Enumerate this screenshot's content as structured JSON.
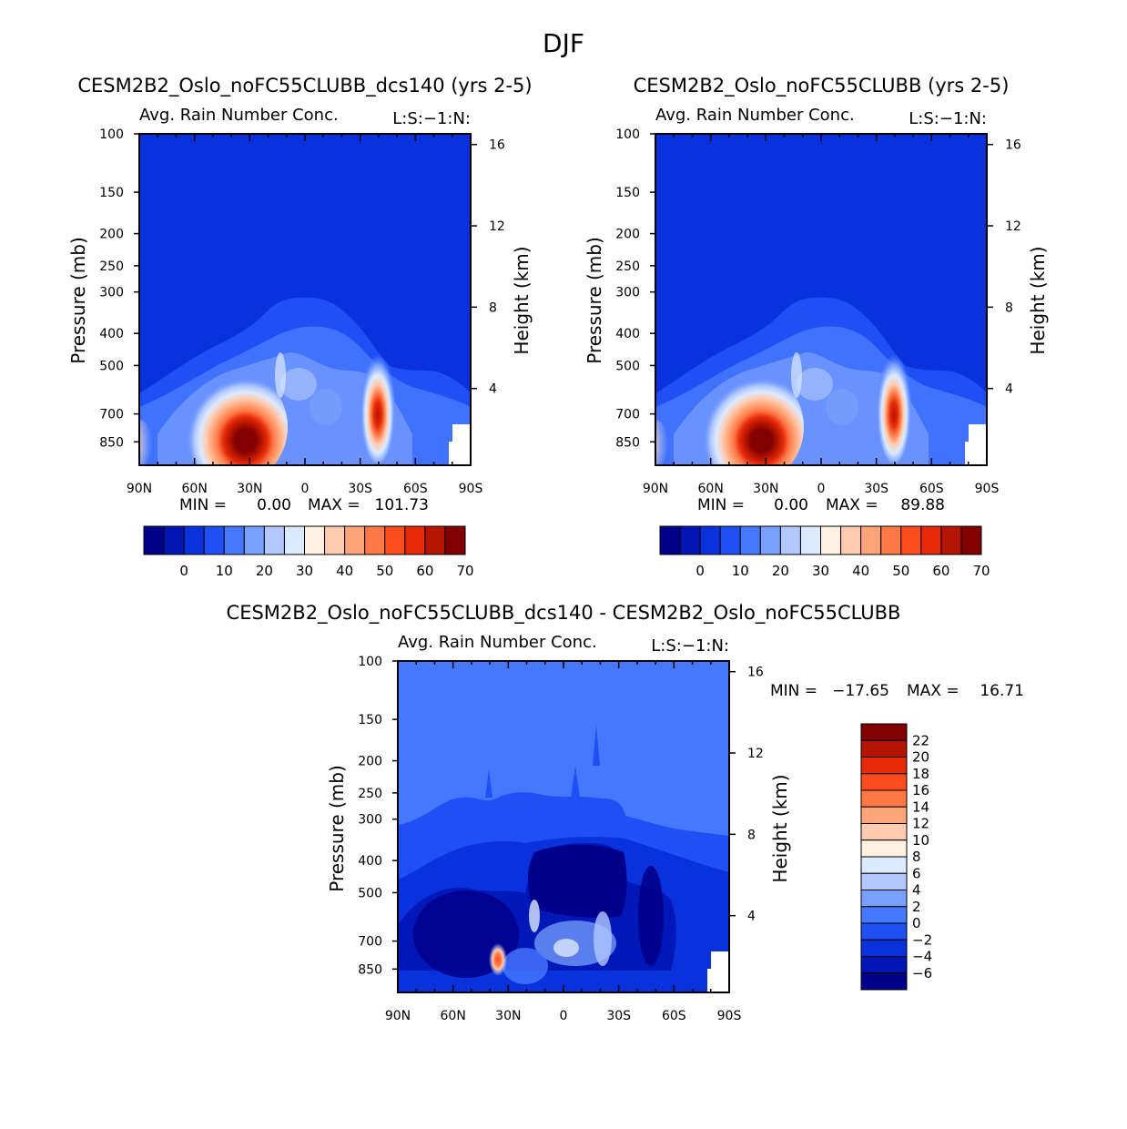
{
  "page_title": "DJF",
  "chart_data": [
    {
      "type": "heatmap",
      "id": "left",
      "title": "CESM2B2_Oslo_noFC55CLUBB_dcs140 (yrs 2-5)",
      "subtitle": "Avg. Rain Number Conc.",
      "units_label": "L:S:-1:N:",
      "xlabel": "",
      "ylabel": "Pressure (mb)",
      "y2label": "Height (km)",
      "x_ticks": [
        "90N",
        "60N",
        "30N",
        "0",
        "30S",
        "60S",
        "90S"
      ],
      "y_ticks": [
        "100",
        "150",
        "200",
        "250",
        "300",
        "400",
        "500",
        "700",
        "850"
      ],
      "y2_ticks": [
        "16",
        "12",
        "8",
        "4"
      ],
      "stats": {
        "min_label": "MIN =",
        "min_value": "0.00",
        "max_label": "MAX =",
        "max_value": "101.73"
      },
      "colorbar": {
        "labels": [
          "0",
          "10",
          "20",
          "30",
          "40",
          "50",
          "60",
          "70"
        ],
        "colors": [
          "#00008b",
          "#0015b4",
          "#0a32dc",
          "#1e50f5",
          "#4678ff",
          "#7aa0ff",
          "#b2c8ff",
          "#dceaff",
          "#fff0e0",
          "#ffcbb0",
          "#ffa478",
          "#ff7846",
          "#ff4c1e",
          "#e62a0a",
          "#b41400",
          "#820000"
        ]
      },
      "features": [
        {
          "name": "nh-rain-max",
          "lat": 40,
          "p": 760,
          "value": 101.73
        },
        {
          "name": "sh-rain-max",
          "lat": -43,
          "p": 700,
          "value": 70
        }
      ]
    },
    {
      "type": "heatmap",
      "id": "right",
      "title": "CESM2B2_Oslo_noFC55CLUBB (yrs 2-5)",
      "subtitle": "Avg. Rain Number Conc.",
      "units_label": "L:S:-1:N:",
      "xlabel": "",
      "ylabel": "Pressure (mb)",
      "y2label": "Height (km)",
      "x_ticks": [
        "90N",
        "60N",
        "30N",
        "0",
        "30S",
        "60S",
        "90S"
      ],
      "y_ticks": [
        "100",
        "150",
        "200",
        "250",
        "300",
        "400",
        "500",
        "700",
        "850"
      ],
      "y2_ticks": [
        "16",
        "12",
        "8",
        "4"
      ],
      "stats": {
        "min_label": "MIN =",
        "min_value": "0.00",
        "max_label": "MAX =",
        "max_value": "89.88"
      },
      "colorbar": {
        "labels": [
          "0",
          "10",
          "20",
          "30",
          "40",
          "50",
          "60",
          "70"
        ],
        "colors": [
          "#00008b",
          "#0015b4",
          "#0a32dc",
          "#1e50f5",
          "#4678ff",
          "#7aa0ff",
          "#b2c8ff",
          "#dceaff",
          "#fff0e0",
          "#ffcbb0",
          "#ffa478",
          "#ff7846",
          "#ff4c1e",
          "#e62a0a",
          "#b41400",
          "#820000"
        ]
      },
      "features": [
        {
          "name": "nh-rain-max",
          "lat": 40,
          "p": 740,
          "value": 89.88
        },
        {
          "name": "sh-rain-max",
          "lat": -43,
          "p": 700,
          "value": 70
        }
      ]
    },
    {
      "type": "heatmap",
      "id": "diff",
      "title": "CESM2B2_Oslo_noFC55CLUBB_dcs140 - CESM2B2_Oslo_noFC55CLUBB",
      "subtitle": "Avg. Rain Number Conc.",
      "units_label": "L:S:-1:N:",
      "xlabel": "",
      "ylabel": "Pressure (mb)",
      "y2label": "Height (km)",
      "x_ticks": [
        "90N",
        "60N",
        "30N",
        "0",
        "30S",
        "60S",
        "90S"
      ],
      "y_ticks": [
        "100",
        "150",
        "200",
        "250",
        "300",
        "400",
        "500",
        "700",
        "850"
      ],
      "y2_ticks": [
        "16",
        "12",
        "8",
        "4"
      ],
      "stats": {
        "min_label": "MIN =",
        "min_value": "-17.65",
        "max_label": "MAX =",
        "max_value": "16.71"
      },
      "colorbar": {
        "labels": [
          "22",
          "20",
          "18",
          "16",
          "14",
          "12",
          "10",
          "8",
          "6",
          "4",
          "2",
          "0",
          "-2",
          "-4",
          "-6"
        ],
        "colors": [
          "#820000",
          "#b41400",
          "#e62a0a",
          "#ff4c1e",
          "#ff7846",
          "#ffa478",
          "#ffcbb0",
          "#fff0e0",
          "#dceaff",
          "#b2c8ff",
          "#7aa0ff",
          "#4678ff",
          "#1e50f5",
          "#0a32dc",
          "#0015b4",
          "#00008b"
        ]
      },
      "features": [
        {
          "name": "positive-max",
          "lat": 37,
          "p": 720,
          "value": 16.71
        },
        {
          "name": "negative-min",
          "lat": 5,
          "p": 420,
          "value": -17.65
        }
      ]
    }
  ]
}
